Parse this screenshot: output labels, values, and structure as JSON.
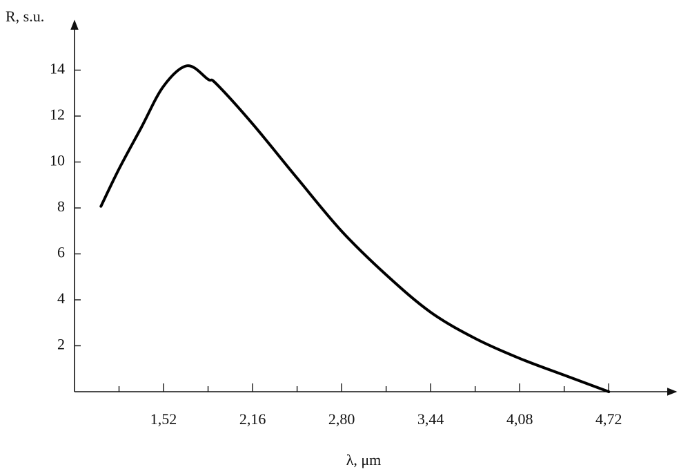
{
  "chart_data": {
    "type": "line",
    "y_label": "R, s.u.",
    "x_label": "λ, μm",
    "x": [
      1.07,
      1.2,
      1.36,
      1.52,
      1.69,
      1.84,
      1.9,
      2.16,
      2.48,
      2.8,
      3.12,
      3.44,
      3.76,
      4.08,
      4.4,
      4.72
    ],
    "values": [
      8.07,
      9.7,
      11.5,
      13.3,
      14.19,
      13.6,
      13.4,
      11.66,
      9.3,
      6.99,
      5.09,
      3.46,
      2.32,
      1.45,
      0.72,
      0
    ],
    "color": "#000000",
    "xlim": [
      0.88,
      5.18
    ],
    "ylim": [
      0,
      16
    ],
    "xticks": [
      {
        "value": 1.52,
        "label": "1,52"
      },
      {
        "value": 2.16,
        "label": "2,16"
      },
      {
        "value": 2.8,
        "label": "2,80"
      },
      {
        "value": 3.44,
        "label": "3,44"
      },
      {
        "value": 4.08,
        "label": "4,08"
      },
      {
        "value": 4.72,
        "label": "4,72"
      }
    ],
    "xminor_ticks": [
      1.2,
      1.84,
      2.48,
      3.12,
      3.76,
      4.4
    ],
    "yticks": [
      2,
      4,
      6,
      8,
      10,
      12,
      14
    ],
    "grid": false
  }
}
